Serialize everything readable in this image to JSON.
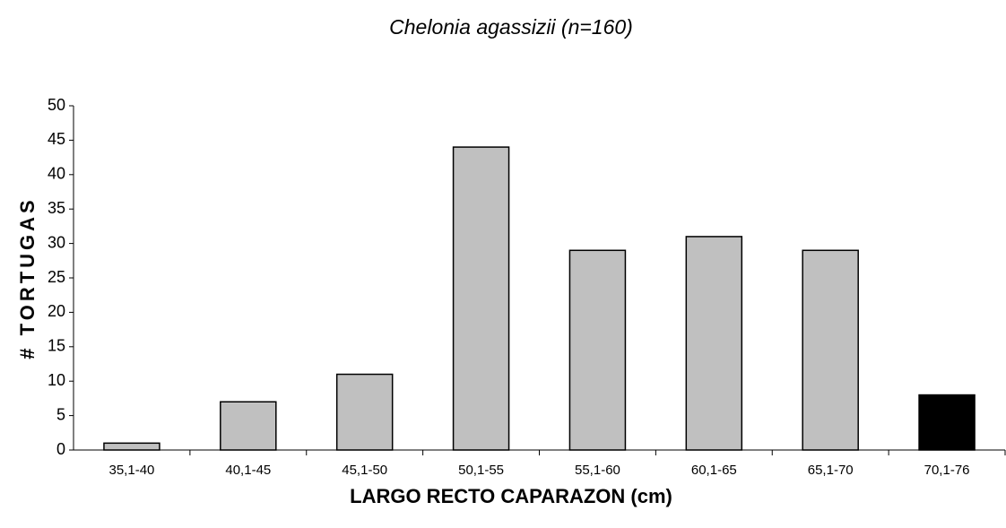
{
  "chart_data": {
    "type": "bar",
    "title": "Chelonia agassizii (n=160)",
    "x_label": "LARGO RECTO CAPARAZON (cm)",
    "y_label": "# TORTUGAS",
    "categories": [
      "35,1-40",
      "40,1-45",
      "45,1-50",
      "50,1-55",
      "55,1-60",
      "60,1-65",
      "65,1-70",
      "70,1-76"
    ],
    "values": [
      1,
      7,
      11,
      44,
      29,
      31,
      29,
      8
    ],
    "colors": [
      "#c0c0c0",
      "#c0c0c0",
      "#c0c0c0",
      "#c0c0c0",
      "#c0c0c0",
      "#c0c0c0",
      "#c0c0c0",
      "#000000"
    ],
    "ylim": [
      0,
      50
    ],
    "yticks": [
      0,
      5,
      10,
      15,
      20,
      25,
      30,
      35,
      40,
      45,
      50
    ],
    "grid": false
  }
}
